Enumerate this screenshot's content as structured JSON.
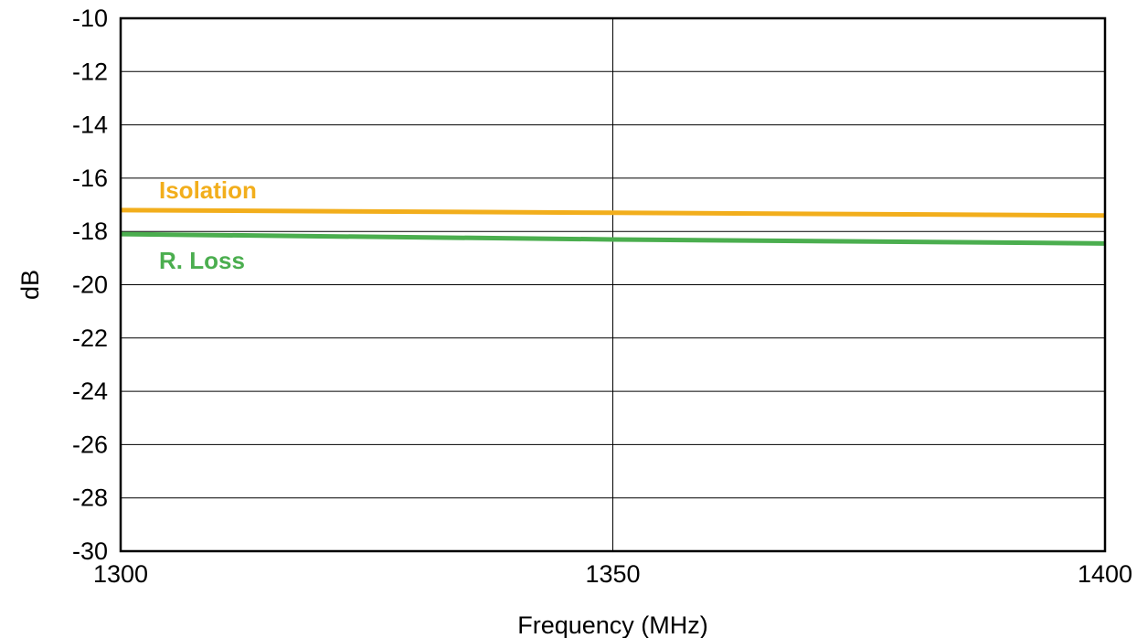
{
  "chart_data": {
    "type": "line",
    "xlabel": "Frequency (MHz)",
    "ylabel": "dB",
    "xlim": [
      1300,
      1400
    ],
    "ylim": [
      -30,
      -10
    ],
    "xticks": [
      1300,
      1350,
      1400
    ],
    "yticks": [
      -10,
      -12,
      -14,
      -16,
      -18,
      -20,
      -22,
      -24,
      -26,
      -28,
      -30
    ],
    "xtick_labels": [
      "1300",
      "1350",
      "1400"
    ],
    "ytick_labels": [
      "-10",
      "-12",
      "-14",
      "-16",
      "-18",
      "-20",
      "-22",
      "-24",
      "-26",
      "-28",
      "-30"
    ],
    "grid": {
      "horizontal": true,
      "vertical_at": [
        1350
      ]
    },
    "series": [
      {
        "name": "Isolation",
        "color": "#f2ae1c",
        "x": [
          1300,
          1350,
          1400
        ],
        "y": [
          -17.2,
          -17.3,
          -17.4
        ]
      },
      {
        "name": "R. Loss",
        "color": "#4bae4f",
        "x": [
          1300,
          1350,
          1400
        ],
        "y": [
          -18.1,
          -18.3,
          -18.45
        ]
      }
    ]
  }
}
